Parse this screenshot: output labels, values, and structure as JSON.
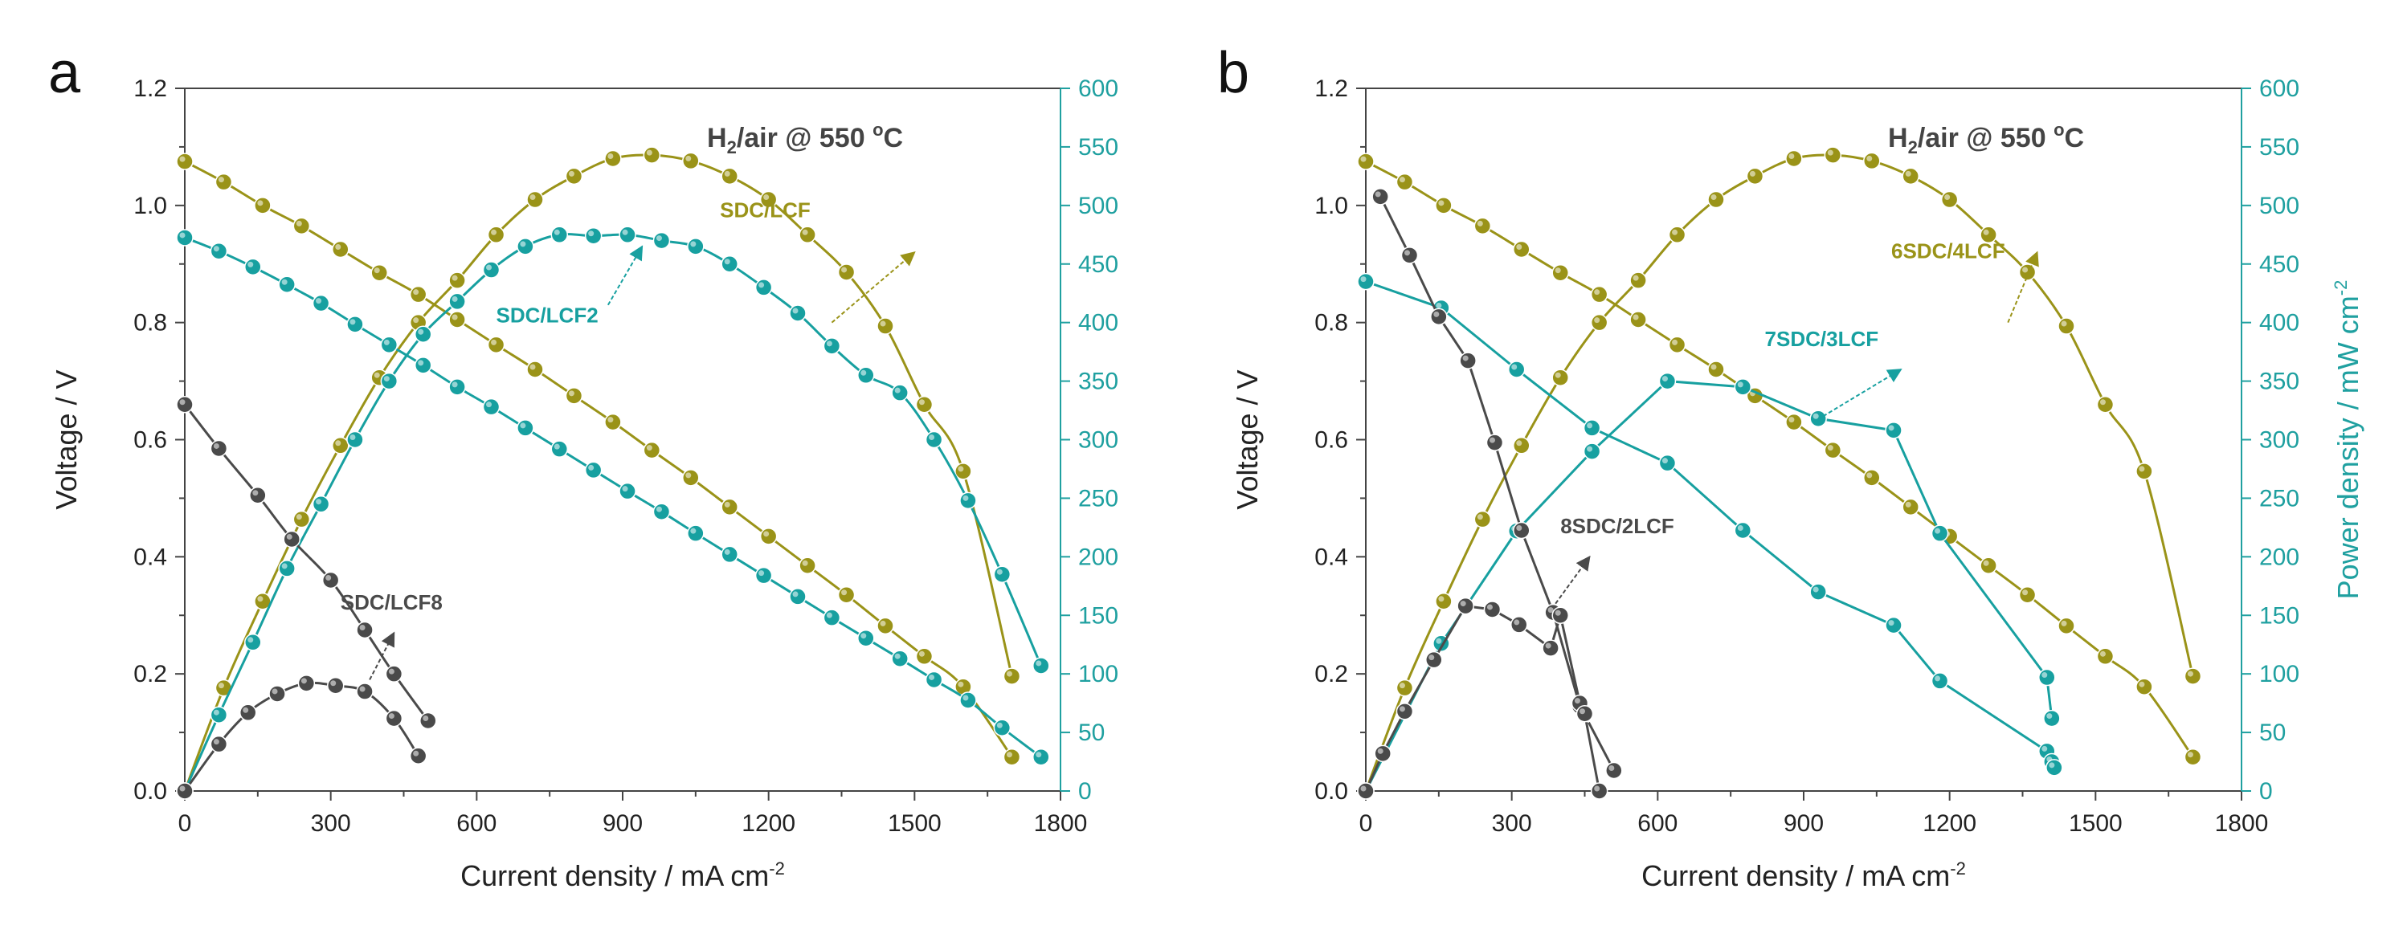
{
  "colors": {
    "axis": "#444444",
    "right_axis": "#1fa0a0",
    "olive": "#9a9318",
    "teal": "#17a0a0",
    "dark": "#4a4a4a"
  },
  "chart_data": [
    {
      "panel": "a",
      "type": "line",
      "condition": {
        "prefix": "H",
        "sub": "2",
        "suffix": "/air @ 550 ",
        "sup": "o",
        "unit": "C"
      },
      "xlabel": {
        "text": "Current density / mA cm",
        "sup": "-2"
      },
      "ylabel": "Voltage / V",
      "y2label": null,
      "xlim": [
        0,
        1800
      ],
      "ylim": [
        0,
        1.2
      ],
      "y2lim": [
        0,
        600
      ],
      "xticks": [
        "0",
        "300",
        "600",
        "900",
        "1200",
        "1500",
        "1800"
      ],
      "yticks": [
        "0.0",
        "0.2",
        "0.4",
        "0.6",
        "0.8",
        "1.0",
        "1.2"
      ],
      "y2ticks": [
        "0",
        "50",
        "100",
        "150",
        "200",
        "250",
        "300",
        "350",
        "400",
        "450",
        "500",
        "550",
        "600"
      ],
      "series": [
        {
          "name": "SDC/LCF voltage",
          "color": "olive",
          "axis": "left",
          "smooth": true,
          "x": [
            0,
            80,
            160,
            240,
            320,
            400,
            480,
            560,
            640,
            720,
            800,
            880,
            960,
            1040,
            1120,
            1200,
            1280,
            1360,
            1440,
            1520,
            1600,
            1700
          ],
          "y": [
            1.075,
            1.04,
            1.0,
            0.965,
            0.925,
            0.885,
            0.848,
            0.805,
            0.762,
            0.72,
            0.675,
            0.63,
            0.582,
            0.535,
            0.485,
            0.435,
            0.385,
            0.335,
            0.282,
            0.23,
            0.178,
            0.058
          ]
        },
        {
          "name": "SDC/LCF power",
          "color": "olive",
          "axis": "right",
          "smooth": true,
          "x": [
            0,
            80,
            160,
            240,
            320,
            400,
            480,
            560,
            640,
            720,
            800,
            880,
            960,
            1040,
            1120,
            1200,
            1280,
            1360,
            1440,
            1520,
            1600,
            1700
          ],
          "y": [
            0,
            88,
            162,
            232,
            295,
            353,
            400,
            436,
            475,
            505,
            525,
            540,
            543,
            538,
            525,
            505,
            475,
            443,
            397,
            330,
            273,
            98
          ]
        },
        {
          "name": "SDC/LCF2 voltage",
          "color": "teal",
          "axis": "left",
          "smooth": true,
          "x": [
            0,
            70,
            140,
            210,
            280,
            350,
            420,
            490,
            560,
            630,
            700,
            770,
            840,
            910,
            980,
            1050,
            1120,
            1190,
            1260,
            1330,
            1400,
            1470,
            1540,
            1610,
            1680,
            1760
          ],
          "y": [
            0.945,
            0.922,
            0.895,
            0.865,
            0.833,
            0.797,
            0.762,
            0.727,
            0.69,
            0.656,
            0.62,
            0.584,
            0.548,
            0.512,
            0.477,
            0.44,
            0.404,
            0.368,
            0.332,
            0.296,
            0.261,
            0.226,
            0.19,
            0.155,
            0.108,
            0.058
          ]
        },
        {
          "name": "SDC/LCF2 power",
          "color": "teal",
          "axis": "right",
          "smooth": true,
          "x": [
            0,
            70,
            140,
            210,
            280,
            350,
            420,
            490,
            560,
            630,
            700,
            770,
            840,
            910,
            980,
            1050,
            1120,
            1190,
            1260,
            1330,
            1400,
            1470,
            1540,
            1610,
            1680,
            1760
          ],
          "y": [
            0,
            65,
            127,
            190,
            245,
            300,
            350,
            390,
            418,
            445,
            465,
            475,
            474,
            475,
            470,
            465,
            450,
            430,
            408,
            380,
            355,
            340,
            300,
            248,
            185,
            107
          ]
        },
        {
          "name": "SDC/LCF8 voltage",
          "color": "dark",
          "axis": "left",
          "smooth": true,
          "x": [
            0,
            70,
            150,
            220,
            300,
            370,
            430,
            500
          ],
          "y": [
            0.66,
            0.585,
            0.505,
            0.43,
            0.36,
            0.275,
            0.2,
            0.12
          ]
        },
        {
          "name": "SDC/LCF8 power",
          "color": "dark",
          "axis": "right",
          "smooth": true,
          "x": [
            0,
            70,
            130,
            190,
            250,
            310,
            370,
            430,
            480
          ],
          "y": [
            0,
            40,
            67,
            83,
            92,
            90,
            85,
            62,
            30
          ]
        }
      ],
      "annotations": [
        {
          "text": "SDC/LCF",
          "color": "olive",
          "x": 1100,
          "y": 0.98,
          "ax": 1330,
          "ay": 0.8,
          "bx": 1500,
          "by": 0.92
        },
        {
          "text": "SDC/LCF2",
          "color": "teal",
          "x": 640,
          "y": 0.8,
          "ax": 870,
          "ay": 0.83,
          "bx": 940,
          "by": 0.93
        },
        {
          "text": "SDC/LCF8",
          "color": "dark",
          "x": 320,
          "y": 0.31,
          "ax": 380,
          "ay": 0.19,
          "bx": 430,
          "by": 0.27
        }
      ]
    },
    {
      "panel": "b",
      "type": "line",
      "condition": {
        "prefix": "H",
        "sub": "2",
        "suffix": "/air @ 550 ",
        "sup": "o",
        "unit": "C"
      },
      "xlabel": {
        "text": "Current density / mA cm",
        "sup": "-2"
      },
      "ylabel": "Voltage / V",
      "y2label": {
        "text": "Power density / mW cm",
        "sup": "-2"
      },
      "xlim": [
        0,
        1800
      ],
      "ylim": [
        0,
        1.2
      ],
      "y2lim": [
        0,
        600
      ],
      "xticks": [
        "0",
        "300",
        "600",
        "900",
        "1200",
        "1500",
        "1800"
      ],
      "yticks": [
        "0.0",
        "0.2",
        "0.4",
        "0.6",
        "0.8",
        "1.0",
        "1.2"
      ],
      "y2ticks": [
        "0",
        "50",
        "100",
        "150",
        "200",
        "250",
        "300",
        "350",
        "400",
        "450",
        "500",
        "550",
        "600"
      ],
      "series": [
        {
          "name": "6SDC/4LCF voltage",
          "color": "olive",
          "axis": "left",
          "smooth": true,
          "x": [
            0,
            80,
            160,
            240,
            320,
            400,
            480,
            560,
            640,
            720,
            800,
            880,
            960,
            1040,
            1120,
            1200,
            1280,
            1360,
            1440,
            1520,
            1600,
            1700
          ],
          "y": [
            1.075,
            1.04,
            1.0,
            0.965,
            0.925,
            0.885,
            0.848,
            0.805,
            0.762,
            0.72,
            0.675,
            0.63,
            0.582,
            0.535,
            0.485,
            0.435,
            0.385,
            0.335,
            0.282,
            0.23,
            0.178,
            0.058
          ]
        },
        {
          "name": "6SDC/4LCF power",
          "color": "olive",
          "axis": "right",
          "smooth": true,
          "x": [
            0,
            80,
            160,
            240,
            320,
            400,
            480,
            560,
            640,
            720,
            800,
            880,
            960,
            1040,
            1120,
            1200,
            1280,
            1360,
            1440,
            1520,
            1600,
            1700
          ],
          "y": [
            0,
            88,
            162,
            232,
            295,
            353,
            400,
            436,
            475,
            505,
            525,
            540,
            543,
            538,
            525,
            505,
            475,
            443,
            397,
            330,
            273,
            98
          ]
        },
        {
          "name": "7SDC/3LCF voltage",
          "color": "teal",
          "axis": "left",
          "smooth": false,
          "x": [
            0,
            155,
            310,
            465,
            620,
            775,
            930,
            1085,
            1180,
            1400,
            1410,
            1415
          ],
          "y": [
            0.87,
            0.825,
            0.72,
            0.62,
            0.56,
            0.445,
            0.34,
            0.283,
            0.188,
            0.068,
            0.05,
            0.04
          ]
        },
        {
          "name": "7SDC/3LCF power",
          "color": "teal",
          "axis": "right",
          "smooth": false,
          "x": [
            0,
            155,
            310,
            465,
            620,
            775,
            930,
            1085,
            1180,
            1400,
            1410
          ],
          "y": [
            0,
            126,
            222,
            290,
            350,
            345,
            318,
            308,
            220,
            97,
            62
          ]
        },
        {
          "name": "8SDC/2LCF voltage",
          "color": "dark",
          "axis": "left",
          "smooth": false,
          "x": [
            30,
            90,
            150,
            210,
            265,
            320,
            385,
            440,
            450,
            510
          ],
          "y": [
            1.015,
            0.915,
            0.81,
            0.735,
            0.595,
            0.445,
            0.305,
            0.145,
            0.13,
            0.035
          ]
        },
        {
          "name": "8SDC/2LCF power",
          "color": "dark",
          "axis": "right",
          "smooth": false,
          "x": [
            0,
            35,
            80,
            140,
            205,
            260,
            315,
            380,
            400,
            440,
            450,
            480
          ],
          "y": [
            0,
            32,
            68,
            112,
            158,
            155,
            142,
            122,
            150,
            75,
            66,
            0
          ]
        }
      ],
      "annotations": [
        {
          "text": "6SDC/4LCF",
          "color": "olive",
          "x": 1080,
          "y": 0.91,
          "ax": 1320,
          "ay": 0.8,
          "bx": 1380,
          "by": 0.92
        },
        {
          "text": "7SDC/3LCF",
          "color": "teal",
          "x": 820,
          "y": 0.76,
          "ax": 940,
          "ay": 0.64,
          "bx": 1100,
          "by": 0.72
        },
        {
          "text": "8SDC/2LCF",
          "color": "dark",
          "x": 400,
          "y": 0.44,
          "ax": 390,
          "ay": 0.32,
          "bx": 460,
          "by": 0.4
        }
      ]
    }
  ]
}
